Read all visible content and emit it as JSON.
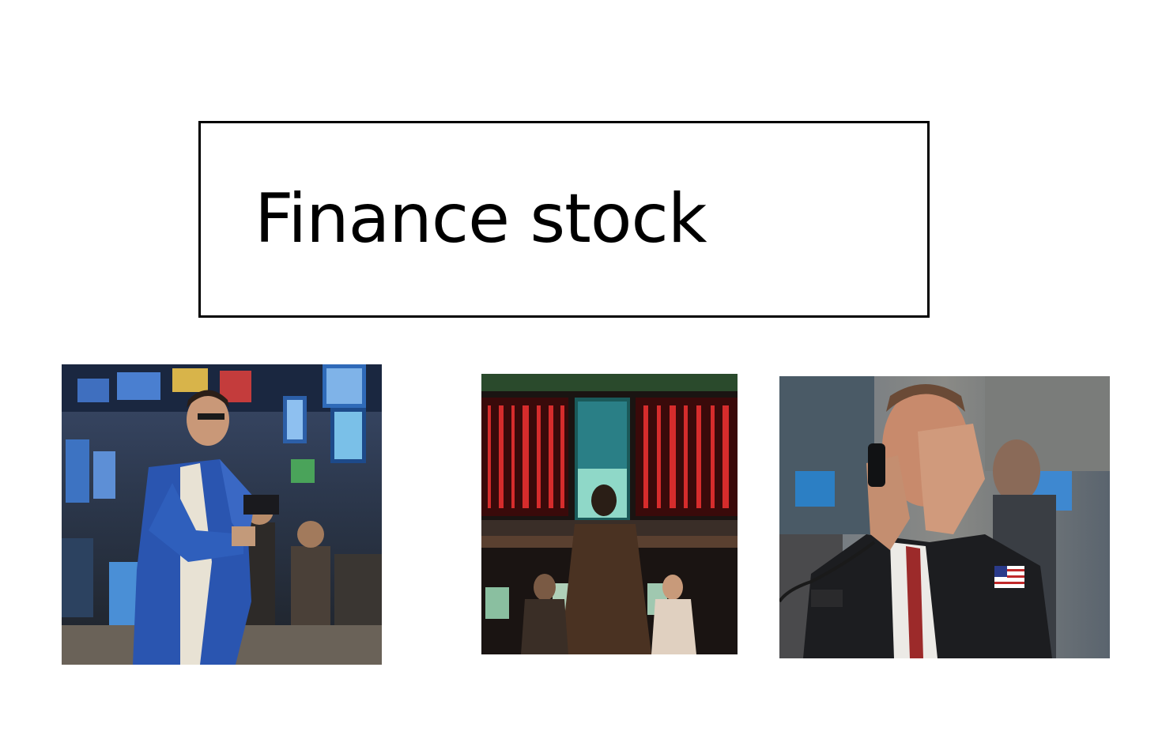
{
  "slide": {
    "title": "Finance stock"
  },
  "images": [
    {
      "name": "trader-on-floor-photo",
      "description_icon": "photo-icon"
    },
    {
      "name": "stock-board-photo",
      "description_icon": "photo-icon"
    },
    {
      "name": "stressed-trader-photo",
      "description_icon": "photo-icon"
    }
  ],
  "colors": {
    "border": "#000000",
    "background": "#ffffff",
    "text": "#000000"
  }
}
